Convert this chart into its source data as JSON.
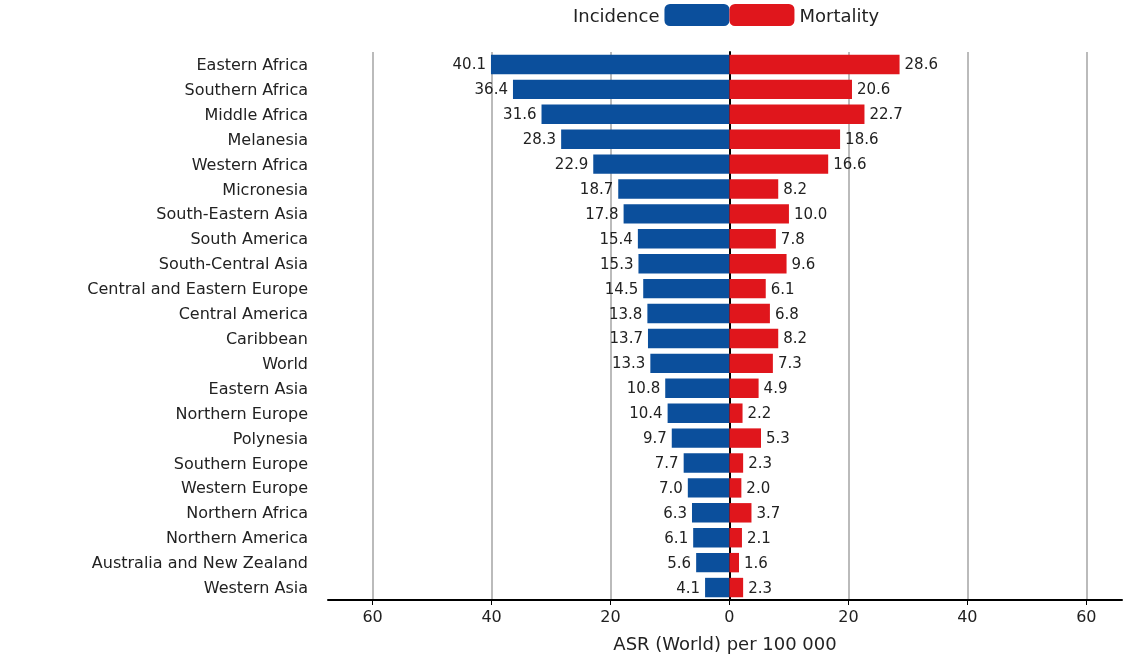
{
  "chart_data": {
    "type": "bar",
    "orientation": "horizontal",
    "xlabel": "ASR (World) per 100 000",
    "categories": [
      "Eastern Africa",
      "Southern Africa",
      "Middle Africa",
      "Melanesia",
      "Western Africa",
      "Micronesia",
      "South-Eastern Asia",
      "South America",
      "South-Central Asia",
      "Central and Eastern Europe",
      "Central America",
      "Caribbean",
      "World",
      "Eastern Asia",
      "Northern Europe",
      "Polynesia",
      "Southern Europe",
      "Western Europe",
      "Northern Africa",
      "Northern America",
      "Australia and New Zealand",
      "Western Asia"
    ],
    "series": [
      {
        "name": "Incidence",
        "color": "#0b4f9c",
        "values": [
          40.1,
          36.4,
          31.6,
          28.3,
          22.9,
          18.7,
          17.8,
          15.4,
          15.3,
          14.5,
          13.8,
          13.7,
          13.3,
          10.8,
          10.4,
          9.7,
          7.7,
          7.0,
          6.3,
          6.1,
          5.6,
          4.1
        ],
        "value_labels": [
          "40.1",
          "36.4",
          "31.6",
          "28.3",
          "22.9",
          "18.7",
          "17.8",
          "15.4",
          "15.3",
          "14.5",
          "13.8",
          "13.7",
          "13.3",
          "10.8",
          "10.4",
          "9.7",
          "7.7",
          "7.0",
          "6.3",
          "6.1",
          "5.6",
          "4.1"
        ],
        "base": [
          -40.1,
          -36.4,
          -31.6,
          -28.3,
          -22.9,
          -18.7,
          -17.8,
          -15.4,
          -15.3,
          -14.5,
          -13.8,
          -13.7,
          -13.3,
          -10.8,
          -10.4,
          -9.7,
          -7.7,
          -7.0,
          -6.3,
          -6.1,
          -5.6,
          -4.1
        ]
      },
      {
        "name": "Mortality",
        "color": "#e0161c",
        "values": [
          28.6,
          20.6,
          22.7,
          18.6,
          16.6,
          8.2,
          10.0,
          7.8,
          9.6,
          6.1,
          6.8,
          8.2,
          7.3,
          4.9,
          2.2,
          5.3,
          2.3,
          2.0,
          3.7,
          2.1,
          1.6,
          2.3
        ],
        "value_labels": [
          "28.6",
          "20.6",
          "22.7",
          "18.6",
          "16.6",
          "8.2",
          "10.0",
          "7.8",
          "9.6",
          "6.1",
          "6.8",
          "8.2",
          "7.3",
          "4.9",
          "2.2",
          "5.3",
          "2.3",
          "2.0",
          "3.7",
          "2.1",
          "1.6",
          "2.3"
        ]
      }
    ],
    "xlim": [
      -67.5,
      66
    ],
    "xticks": [
      {
        "value": -60,
        "label": "60"
      },
      {
        "value": -40,
        "label": "40"
      },
      {
        "value": -20,
        "label": "20"
      },
      0,
      20,
      40,
      60
    ],
    "grid": "x",
    "legend": "top"
  }
}
